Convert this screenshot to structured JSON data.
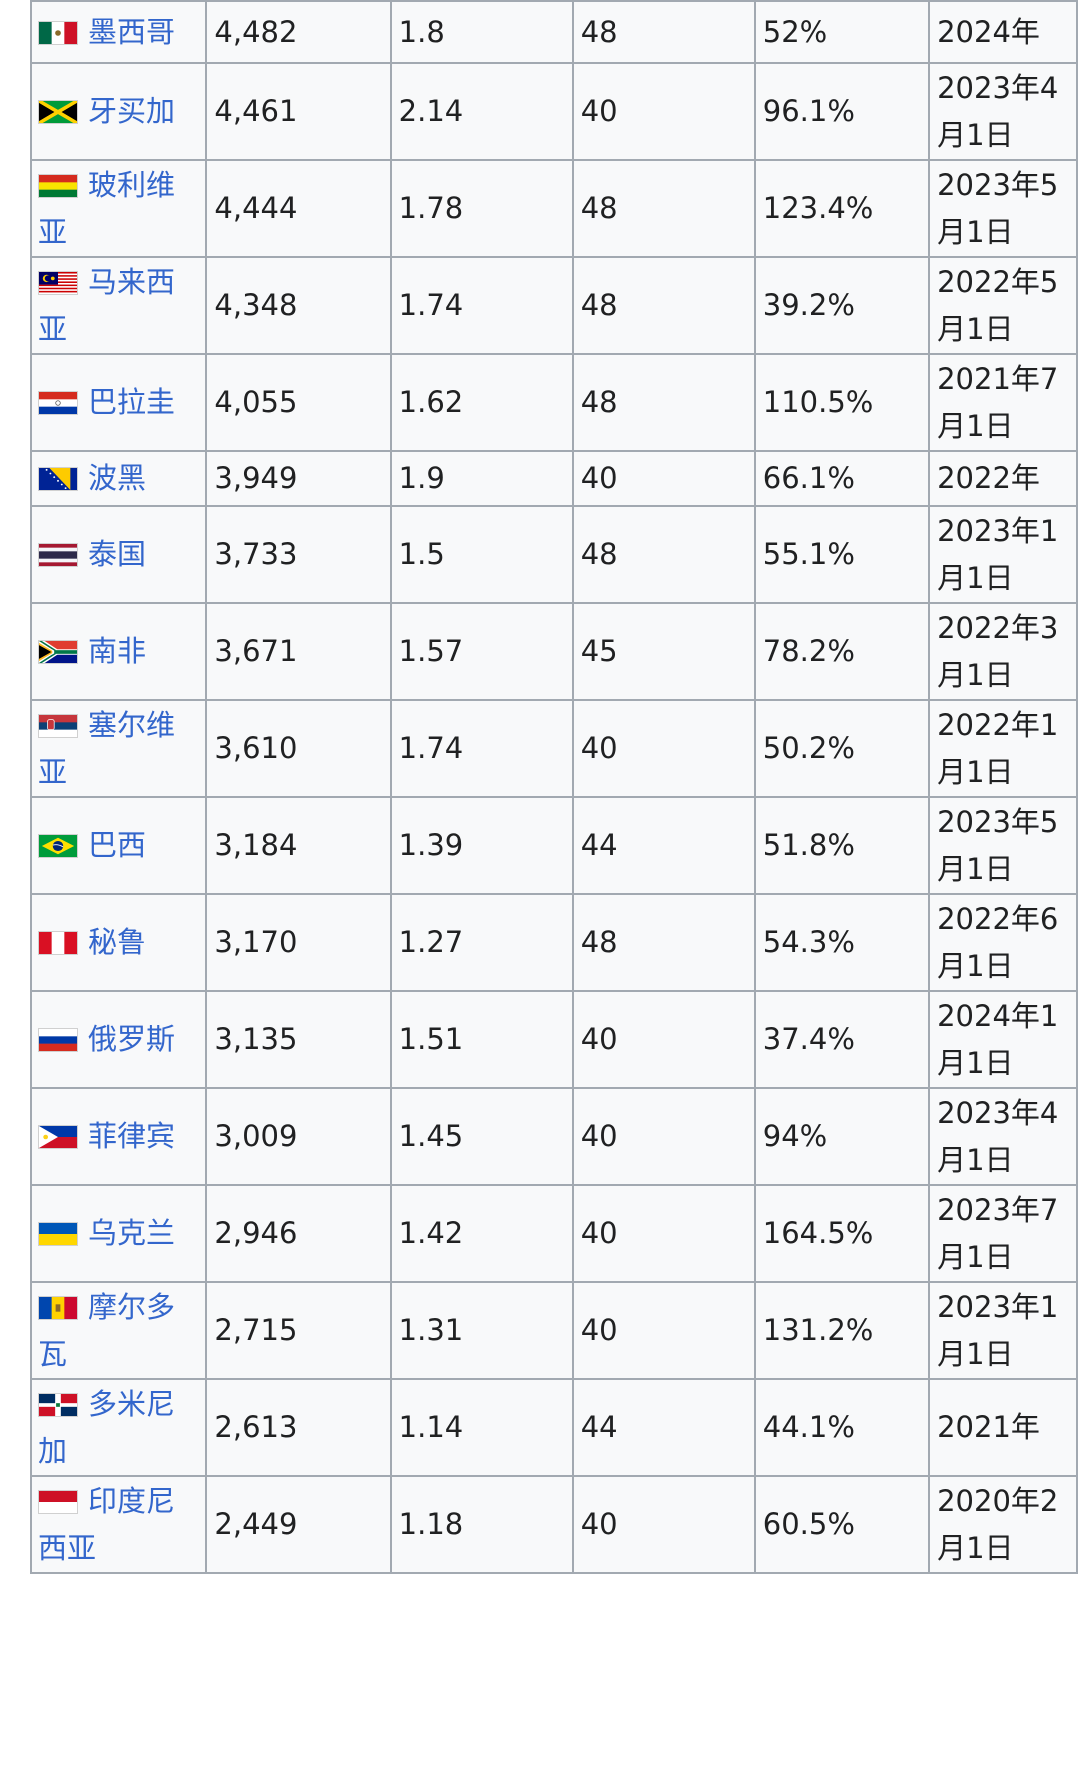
{
  "rows": [
    {
      "flag": "mexico-flag",
      "country": "墨西哥",
      "value": "4,482",
      "ratio": "1.8",
      "hours": "48",
      "percent": "52%",
      "date": "2024年"
    },
    {
      "flag": "jamaica-flag",
      "country": "牙买加",
      "value": "4,461",
      "ratio": "2.14",
      "hours": "40",
      "percent": "96.1%",
      "date": "2023年4月1日"
    },
    {
      "flag": "bolivia-flag",
      "country": "玻利维亚",
      "value": "4,444",
      "ratio": "1.78",
      "hours": "48",
      "percent": "123.4%",
      "date": "2023年5月1日"
    },
    {
      "flag": "malaysia-flag",
      "country": "马来西亚",
      "value": "4,348",
      "ratio": "1.74",
      "hours": "48",
      "percent": "39.2%",
      "date": "2022年5月1日"
    },
    {
      "flag": "paraguay-flag",
      "country": "巴拉圭",
      "value": "4,055",
      "ratio": "1.62",
      "hours": "48",
      "percent": "110.5%",
      "date": "2021年7月1日"
    },
    {
      "flag": "bosnia-flag",
      "country": "波黑",
      "value": "3,949",
      "ratio": "1.9",
      "hours": "40",
      "percent": "66.1%",
      "date": "2022年"
    },
    {
      "flag": "thailand-flag",
      "country": "泰国",
      "value": "3,733",
      "ratio": "1.5",
      "hours": "48",
      "percent": "55.1%",
      "date": "2023年1月1日"
    },
    {
      "flag": "south-africa-flag",
      "country": "南非",
      "value": "3,671",
      "ratio": "1.57",
      "hours": "45",
      "percent": "78.2%",
      "date": "2022年3月1日"
    },
    {
      "flag": "serbia-flag",
      "country": "塞尔维亚",
      "value": "3,610",
      "ratio": "1.74",
      "hours": "40",
      "percent": "50.2%",
      "date": "2022年1月1日"
    },
    {
      "flag": "brazil-flag",
      "country": "巴西",
      "value": "3,184",
      "ratio": "1.39",
      "hours": "44",
      "percent": "51.8%",
      "date": "2023年5月1日"
    },
    {
      "flag": "peru-flag",
      "country": "秘鲁",
      "value": "3,170",
      "ratio": "1.27",
      "hours": "48",
      "percent": "54.3%",
      "date": "2022年6月1日"
    },
    {
      "flag": "russia-flag",
      "country": "俄罗斯",
      "value": "3,135",
      "ratio": "1.51",
      "hours": "40",
      "percent": "37.4%",
      "date": "2024年1月1日"
    },
    {
      "flag": "philippines-flag",
      "country": "菲律宾",
      "value": "3,009",
      "ratio": "1.45",
      "hours": "40",
      "percent": "94%",
      "date": "2023年4月1日"
    },
    {
      "flag": "ukraine-flag",
      "country": "乌克兰",
      "value": "2,946",
      "ratio": "1.42",
      "hours": "40",
      "percent": "164.5%",
      "date": "2023年7月1日"
    },
    {
      "flag": "moldova-flag",
      "country": "摩尔多瓦",
      "value": "2,715",
      "ratio": "1.31",
      "hours": "40",
      "percent": "131.2%",
      "date": "2023年1月1日"
    },
    {
      "flag": "dominican-republic-flag",
      "country": "多米尼加",
      "value": "2,613",
      "ratio": "1.14",
      "hours": "44",
      "percent": "44.1%",
      "date": "2021年"
    },
    {
      "flag": "indonesia-flag",
      "country": "印度尼西亚",
      "value": "2,449",
      "ratio": "1.18",
      "hours": "40",
      "percent": "60.5%",
      "date": "2020年2月1日"
    }
  ]
}
